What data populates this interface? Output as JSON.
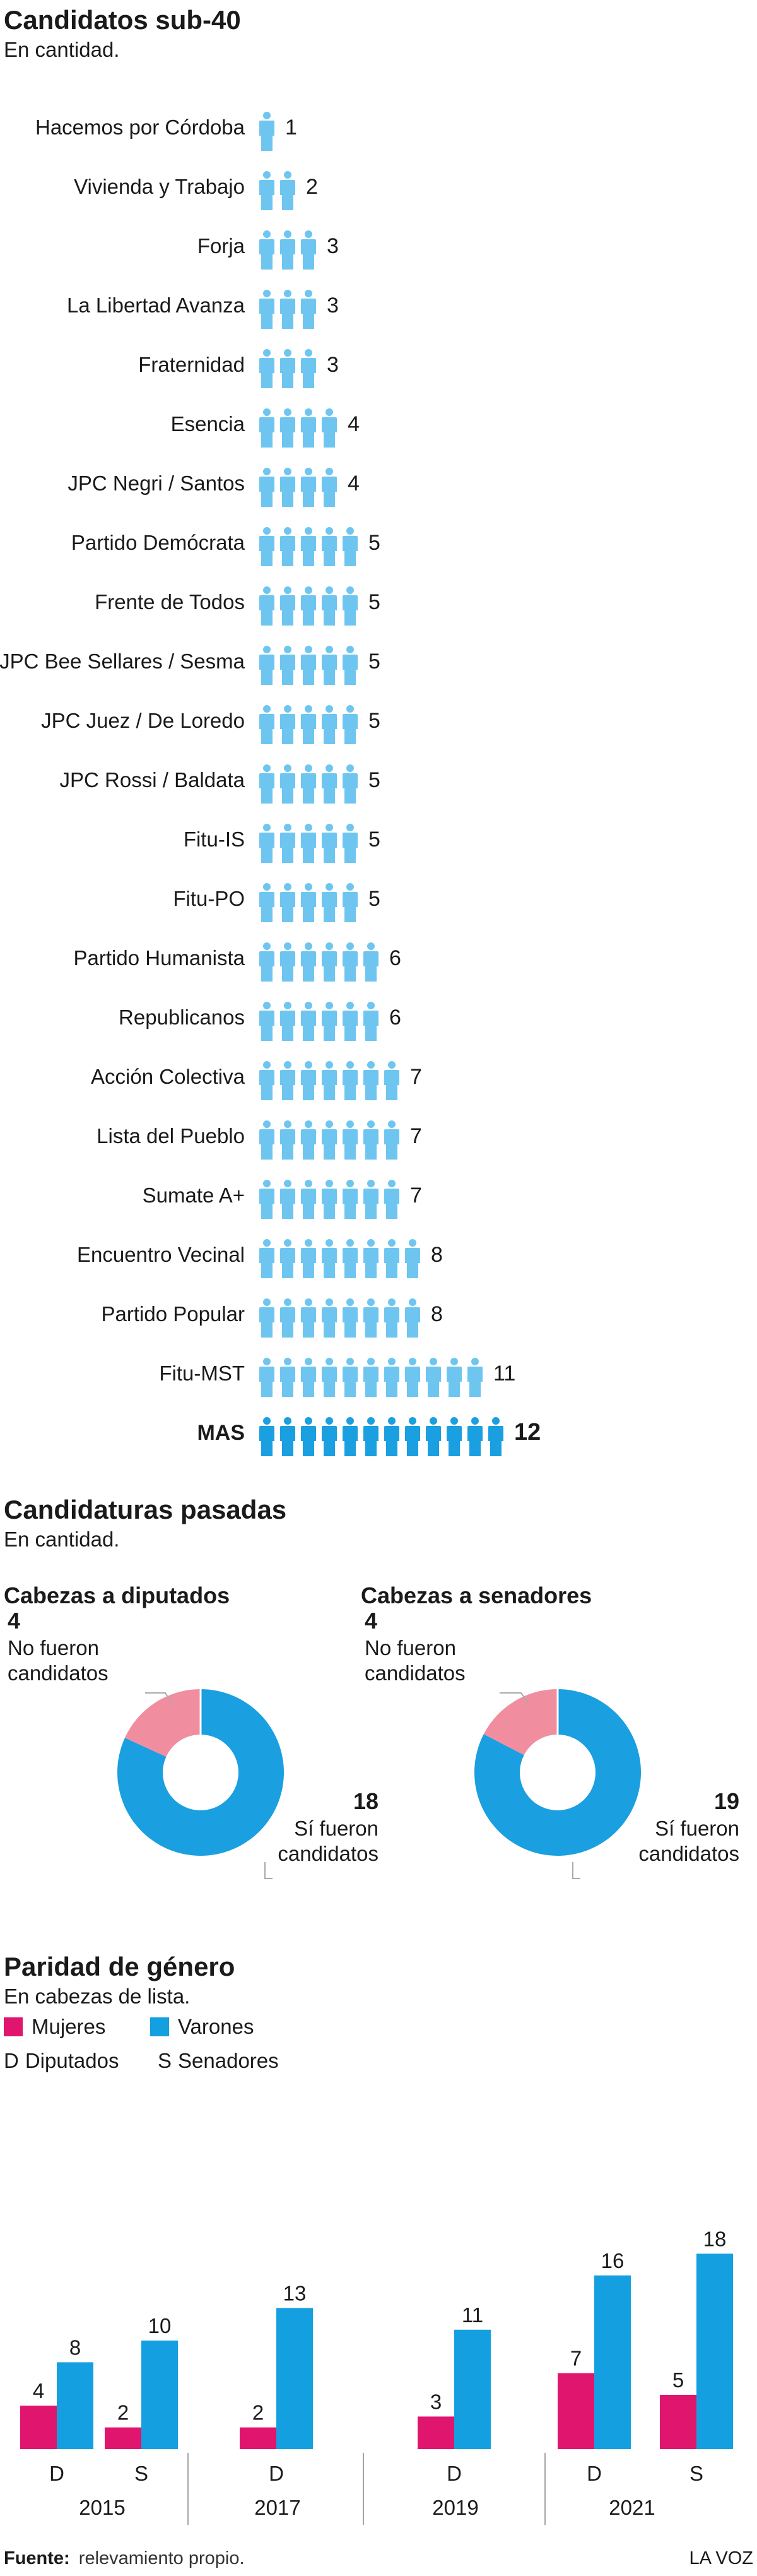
{
  "colors": {
    "light_blue": "#6ec6f0",
    "dark_blue": "#1a9fe0",
    "pink": "#f08ea0",
    "magenta": "#e0156e",
    "cyan": "#14a0e0",
    "text": "#1a1a1a",
    "gray": "#aaaaaa"
  },
  "source": {
    "label": "Fuente:",
    "text": "relevamiento propio."
  },
  "brand": "LA VOZ",
  "chart_data": [
    {
      "type": "bar",
      "title": "Candidatos sub-40",
      "subtitle": "En cantidad.",
      "icon": "person-icon",
      "categories": [
        "Hacemos por Córdoba",
        "Vivienda y Trabajo",
        "Forja",
        "La Libertad Avanza",
        "Fraternidad",
        "Esencia",
        "JPC Negri / Santos",
        "Partido Demócrata",
        "Frente de Todos",
        "JPC Bee Sellares / Sesma",
        "JPC Juez / De Loredo",
        "JPC Rossi / Baldata",
        "Fitu-IS",
        "Fitu-PO",
        "Partido Humanista",
        "Republicanos",
        "Acción Colectiva",
        "Lista del Pueblo",
        "Sumate A+",
        "Encuentro Vecinal",
        "Partido Popular",
        "Fitu-MST",
        "MAS"
      ],
      "values": [
        1,
        2,
        3,
        3,
        3,
        4,
        4,
        5,
        5,
        5,
        5,
        5,
        5,
        5,
        6,
        6,
        7,
        7,
        7,
        8,
        8,
        11,
        12
      ],
      "highlight": "MAS",
      "value_labels": [
        "1",
        "2",
        "3",
        "3",
        "3",
        "4",
        "4",
        "5",
        "5",
        "5",
        "5",
        "5",
        "5",
        "5",
        "6",
        "6",
        "7",
        "7",
        "7",
        "8",
        "8",
        "11",
        "12"
      ]
    },
    {
      "type": "pie",
      "title": "Candidaturas pasadas",
      "subtitle": "En cantidad.",
      "charts": [
        {
          "title": "Cabezas a diputados",
          "slices": [
            {
              "value": 4,
              "label1": "No fueron",
              "label2": "candidatos",
              "value_label": "4",
              "color": "#f08ea0"
            },
            {
              "value": 18,
              "label1": "Sí fueron",
              "label2": "candidatos",
              "value_label": "18",
              "color": "#1a9fe0"
            }
          ]
        },
        {
          "title": "Cabezas a senadores",
          "slices": [
            {
              "value": 4,
              "label1": "No fueron",
              "label2": "candidatos",
              "value_label": "4",
              "color": "#f08ea0"
            },
            {
              "value": 19,
              "label1": "Sí fueron",
              "label2": "candidatos",
              "value_label": "19",
              "color": "#1a9fe0"
            }
          ]
        }
      ]
    },
    {
      "type": "bar",
      "title": "Paridad de género",
      "subtitle": "En cabezas de lista.",
      "legend": [
        {
          "name": "Mujeres",
          "color": "#e0156e"
        },
        {
          "name": "Varones",
          "color": "#14a0e0"
        }
      ],
      "key": [
        {
          "code": "D",
          "name": "Diputados"
        },
        {
          "code": "S",
          "name": "Senadores"
        }
      ],
      "groups": [
        {
          "year": "2015",
          "items": [
            {
              "code": "D",
              "mujeres": 4,
              "varones": 8,
              "m_label": "4",
              "v_label": "8"
            },
            {
              "code": "S",
              "mujeres": 2,
              "varones": 10,
              "m_label": "2",
              "v_label": "10"
            }
          ]
        },
        {
          "year": "2017",
          "items": [
            {
              "code": "D",
              "mujeres": 2,
              "varones": 13,
              "m_label": "2",
              "v_label": "13"
            }
          ]
        },
        {
          "year": "2019",
          "items": [
            {
              "code": "D",
              "mujeres": 3,
              "varones": 11,
              "m_label": "3",
              "v_label": "11"
            }
          ]
        },
        {
          "year": "2021",
          "items": [
            {
              "code": "D",
              "mujeres": 7,
              "varones": 16,
              "m_label": "7",
              "v_label": "16"
            },
            {
              "code": "S",
              "mujeres": 5,
              "varones": 18,
              "m_label": "5",
              "v_label": "18"
            }
          ]
        }
      ]
    }
  ]
}
